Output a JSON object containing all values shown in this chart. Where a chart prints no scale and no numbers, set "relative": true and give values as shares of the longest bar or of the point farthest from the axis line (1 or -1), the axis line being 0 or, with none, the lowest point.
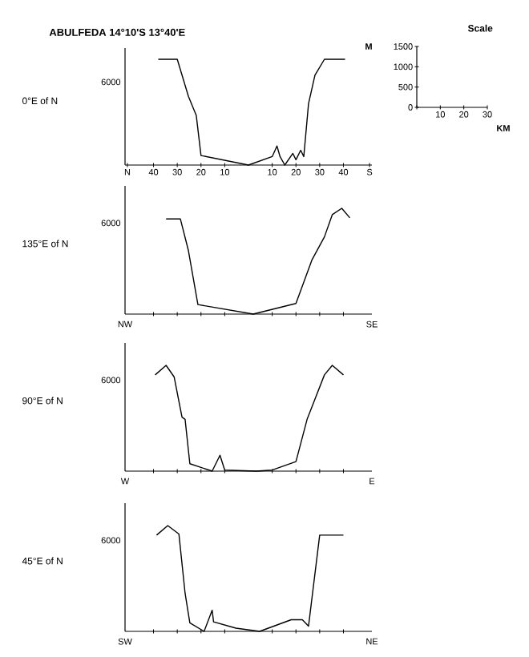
{
  "chart_data": [
    {
      "type": "line",
      "title": "ABULFEDA  14°10'S   13°40'E",
      "ylabel": "0°E of N",
      "relative": true,
      "color": "#000000",
      "annotations": [
        "6000"
      ],
      "x": [
        -38,
        -30,
        -25.3,
        -22,
        -20,
        0,
        10,
        12,
        13.3,
        15.3,
        18.7,
        20,
        22,
        23.3,
        25.3,
        28,
        32,
        40.7
      ],
      "values": [
        1,
        1,
        0.65,
        0.47,
        0.09,
        0,
        0.08,
        0.18,
        0.08,
        0,
        0.11,
        0.05,
        0.14,
        0.08,
        0.58,
        0.85,
        1,
        1
      ],
      "xlim": [
        -52,
        52
      ],
      "xticks": [
        {
          "value": -51,
          "label": "N"
        },
        {
          "value": -40,
          "label": "40"
        },
        {
          "value": -30,
          "label": "30"
        },
        {
          "value": -20,
          "label": "20"
        },
        {
          "value": -10,
          "label": "10"
        },
        10,
        20,
        30,
        40,
        {
          "value": 51,
          "label": "S"
        }
      ]
    },
    {
      "type": "line",
      "title": "Scale",
      "xlabel": "KM",
      "ylabel": "M",
      "xlim": [
        0,
        30
      ],
      "ylim": [
        0,
        1500
      ],
      "xticks": [
        {
          "value": 0,
          "label": null
        },
        10,
        20,
        30
      ],
      "yticks": [
        0,
        500,
        1000,
        1500
      ]
    },
    {
      "type": "line",
      "ylabel": "135°E of N",
      "relative": true,
      "color": "#000000",
      "annotations": [
        "6000",
        "NW",
        "SE"
      ],
      "tick_labels": false,
      "x": [
        -34.7,
        -28.7,
        -25.3,
        -21.3,
        2,
        20,
        26.7,
        32,
        35.3,
        39.3,
        42.7
      ],
      "values": [
        0.9,
        0.9,
        0.6,
        0.09,
        0,
        0.1,
        0.51,
        0.73,
        0.94,
        1,
        0.91
      ],
      "xlim": [
        -52,
        52
      ],
      "xticks": [
        -40,
        -30,
        -20,
        -10,
        10,
        20,
        30,
        40
      ]
    },
    {
      "type": "line",
      "ylabel": "90°E of N",
      "relative": true,
      "color": "#000000",
      "annotations": [
        "6000",
        "W",
        "E"
      ],
      "tick_labels": false,
      "x": [
        -39.3,
        -34.7,
        -31.3,
        -28,
        -26.7,
        -24.7,
        -15.3,
        -12,
        -10,
        3.3,
        10,
        20,
        24.7,
        28,
        32,
        35.3,
        40
      ],
      "values": [
        0.91,
        1,
        0.89,
        0.51,
        0.49,
        0.07,
        0,
        0.15,
        0.01,
        0,
        0.01,
        0.09,
        0.49,
        0.68,
        0.91,
        1,
        0.91
      ],
      "xlim": [
        -52,
        52
      ],
      "xticks": [
        -40,
        -30,
        -20,
        -10,
        10,
        20,
        30,
        40
      ]
    },
    {
      "type": "line",
      "ylabel": "45°E of N",
      "relative": true,
      "color": "#000000",
      "annotations": [
        "6000",
        "SW",
        "NE"
      ],
      "tick_labels": false,
      "x": [
        -38.7,
        -34,
        -29.3,
        -26.7,
        -24.7,
        -18.7,
        -15.3,
        -14.7,
        -5.3,
        4.7,
        18,
        22.7,
        25.3,
        30,
        40
      ],
      "values": [
        0.91,
        1,
        0.92,
        0.36,
        0.08,
        0,
        0.2,
        0.09,
        0.03,
        0,
        0.11,
        0.11,
        0.05,
        0.91,
        0.91
      ],
      "xlim": [
        -52,
        52
      ],
      "xticks": [
        -40,
        -30,
        -20,
        -10,
        10,
        20,
        30,
        40
      ]
    }
  ]
}
